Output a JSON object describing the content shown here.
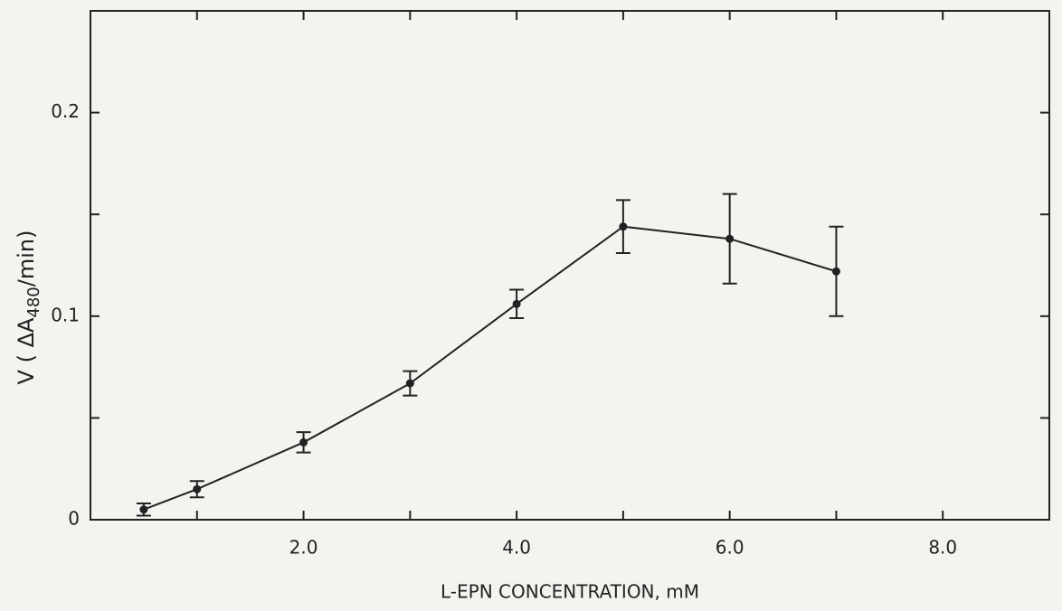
{
  "chart_data": {
    "type": "line",
    "x_label": "L-EPN   CONCENTRATION, mM",
    "y_label": {
      "prefix": "V ( ΔA",
      "subscript": "480",
      "suffix": "/min)"
    },
    "x": [
      0.5,
      1,
      2,
      3,
      4,
      5,
      6,
      7
    ],
    "series": [
      {
        "color": "#222222",
        "values": [
          0.005,
          0.015,
          0.038,
          0.067,
          0.106,
          0.144,
          0.138,
          0.122
        ],
        "errors": [
          0.003,
          0.004,
          0.005,
          0.006,
          0.007,
          0.013,
          0.022,
          0.022
        ]
      }
    ],
    "xlim": [
      0,
      9
    ],
    "ylim": [
      0,
      0.25
    ],
    "xticks": [
      {
        "value": 2,
        "label": "2.0"
      },
      {
        "value": 4,
        "label": "4.0"
      },
      {
        "value": 6,
        "label": "6.0"
      },
      {
        "value": 8,
        "label": "8.0"
      }
    ],
    "xticks_minor": [
      1,
      3,
      5,
      7
    ],
    "yticks": [
      0,
      0.1,
      0.2
    ],
    "yticks_minor": [
      0.05,
      0.15
    ]
  }
}
